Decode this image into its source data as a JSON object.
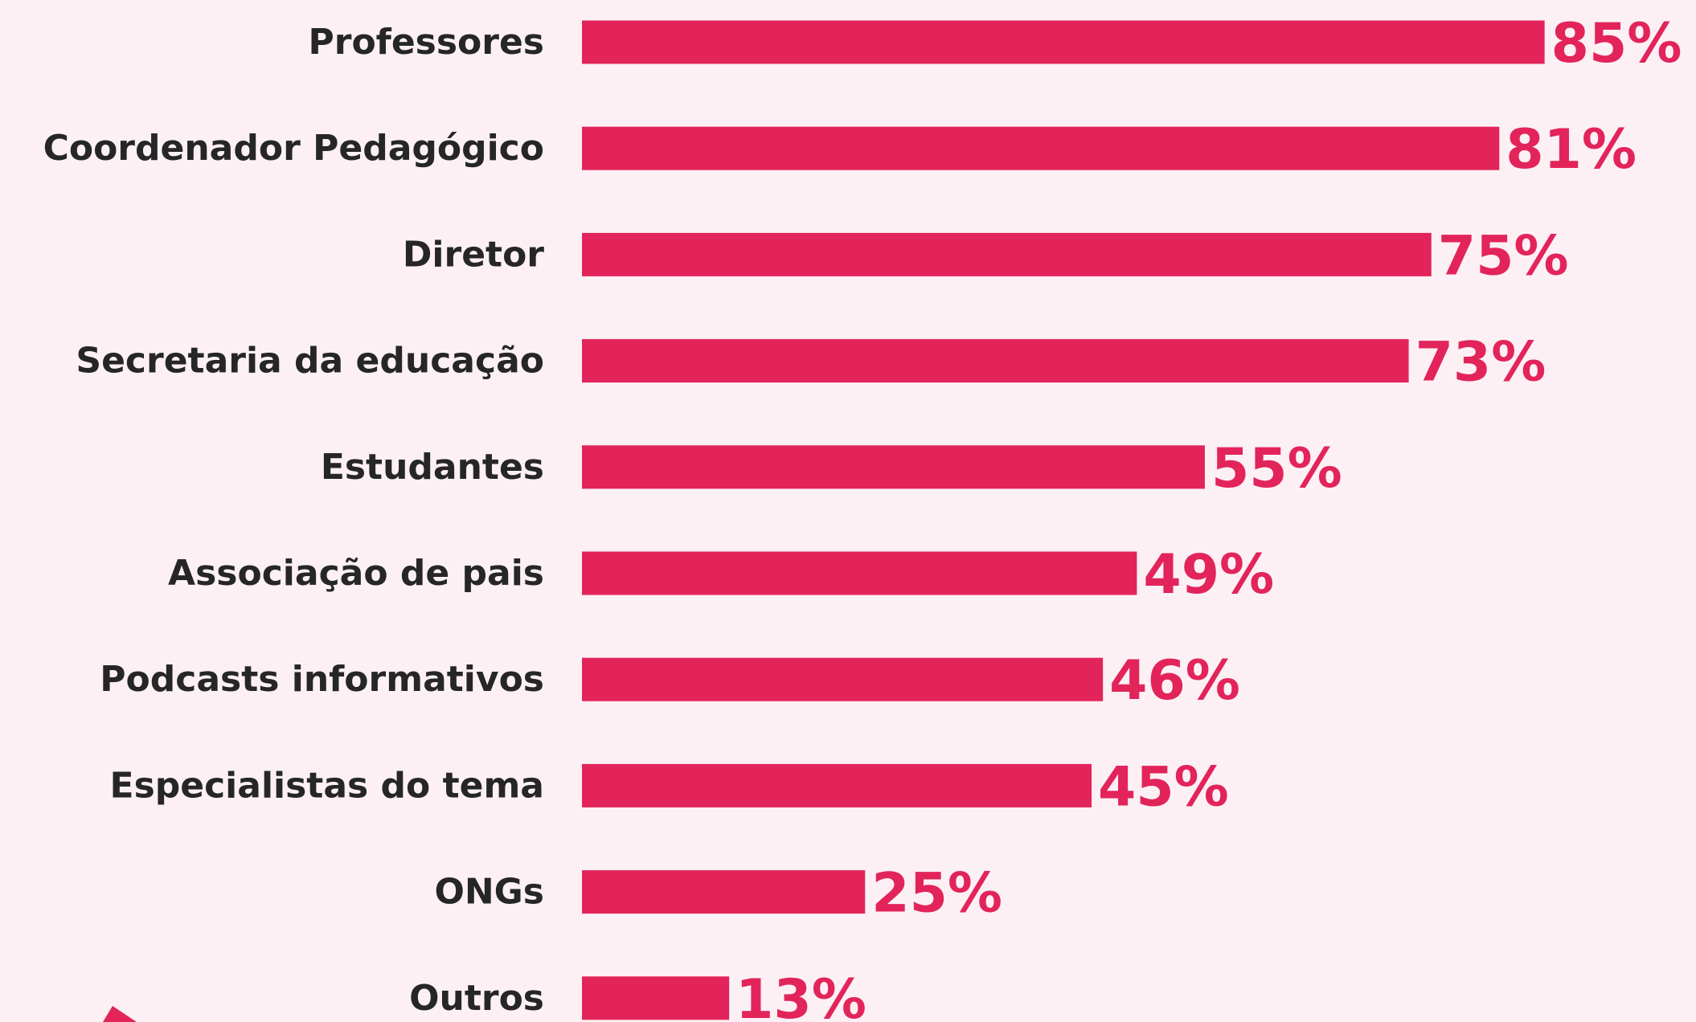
{
  "chart_data": {
    "type": "bar",
    "orientation": "horizontal",
    "categories": [
      "Professores",
      "Coordenador Pedagógico",
      "Diretor",
      "Secretaria da educação",
      "Estudantes",
      "Associação de pais",
      "Podcasts informativos",
      "Especialistas do tema",
      "ONGs",
      "Outros"
    ],
    "values": [
      85,
      81,
      75,
      73,
      55,
      49,
      46,
      45,
      25,
      13
    ],
    "value_labels": [
      "85%",
      "81%",
      "75%",
      "73%",
      "55%",
      "49%",
      "46%",
      "45%",
      "25%",
      "13%"
    ],
    "color": "#e2245a",
    "xlim": [
      0,
      100
    ]
  }
}
